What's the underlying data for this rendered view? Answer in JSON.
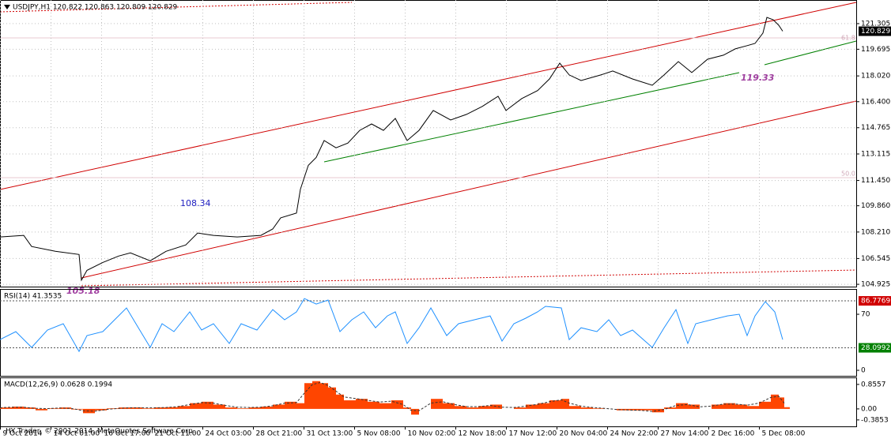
{
  "chart_data": [
    {
      "type": "line",
      "title": "USDJPY,H1 120.822 120.863 120.809 120.829",
      "x": [
        0,
        30,
        40,
        70,
        100,
        103,
        110,
        130,
        150,
        165,
        190,
        210,
        235,
        250,
        270,
        300,
        330,
        345,
        355,
        375,
        380,
        390,
        400,
        410,
        425,
        440,
        455,
        470,
        485,
        500,
        515,
        530,
        548,
        570,
        590,
        610,
        630,
        640,
        660,
        680,
        695,
        708,
        720,
        735,
        760,
        775,
        800,
        825,
        840,
        858,
        875,
        895,
        915,
        930,
        945,
        955,
        965,
        970,
        978,
        985,
        990
      ],
      "values": [
        107.9,
        108.0,
        107.3,
        107.0,
        106.8,
        105.18,
        105.8,
        106.3,
        106.7,
        106.9,
        106.4,
        107.0,
        107.4,
        108.15,
        108.0,
        107.9,
        108.0,
        108.4,
        109.1,
        109.4,
        110.9,
        112.4,
        112.9,
        113.96,
        113.5,
        113.8,
        114.6,
        115.0,
        114.6,
        115.35,
        113.96,
        114.6,
        115.85,
        115.25,
        115.6,
        116.1,
        116.74,
        115.85,
        116.6,
        117.1,
        117.83,
        118.82,
        118.08,
        117.73,
        118.08,
        118.33,
        117.83,
        117.43,
        118.08,
        118.92,
        118.23,
        119.07,
        119.32,
        119.72,
        119.92,
        120.06,
        120.71,
        121.7,
        121.55,
        121.2,
        120.83
      ],
      "color": "#000000",
      "xlim": [
        0,
        1083
      ],
      "xticks": [
        {
          "value": 0,
          "label": "9 Oct 2014"
        },
        {
          "value": 64,
          "label": "14 Oct 01:00"
        },
        {
          "value": 128,
          "label": "16 Oct 17:00"
        },
        {
          "value": 192,
          "label": "21 Oct 11:00"
        },
        {
          "value": 256,
          "label": "24 Oct 03:00"
        },
        {
          "value": 320,
          "label": "28 Oct 21:00"
        },
        {
          "value": 384,
          "label": "31 Oct 13:00"
        },
        {
          "value": 448,
          "label": "5 Nov 08:00"
        },
        {
          "value": 512,
          "label": "10 Nov 02:00"
        },
        {
          "value": 576,
          "label": "12 Nov 18:00"
        },
        {
          "value": 640,
          "label": "17 Nov 12:00"
        },
        {
          "value": 704,
          "label": "20 Nov 04:00"
        },
        {
          "value": 768,
          "label": "24 Nov 22:00"
        },
        {
          "value": 832,
          "label": "27 Nov 14:00"
        },
        {
          "value": 896,
          "label": "2 Dec 16:00"
        },
        {
          "value": 960,
          "label": "5 Dec 08:00"
        }
      ],
      "ylim": [
        104.78,
        122.79
      ],
      "yticks": [
        121.305,
        119.695,
        {
          "value": 118.02,
          "label": "118.020"
        },
        {
          "value": 116.4,
          "label": "116.400"
        },
        114.765,
        113.115,
        {
          "value": 111.45,
          "label": "111.450"
        },
        {
          "value": 109.86,
          "label": "109.860"
        },
        {
          "value": 108.21,
          "label": "108.210"
        },
        106.545,
        104.925
      ],
      "grid": true,
      "last_price": 120.829,
      "annotations": [
        "108.34",
        "105.18",
        "119.33",
        "61.8",
        "50.0"
      ]
    },
    {
      "type": "line",
      "title": "RSI(14) 41.3535",
      "x": [
        0,
        20,
        40,
        60,
        80,
        100,
        110,
        130,
        145,
        160,
        175,
        190,
        205,
        220,
        240,
        255,
        270,
        290,
        305,
        325,
        345,
        360,
        375,
        385,
        400,
        415,
        430,
        445,
        460,
        475,
        490,
        500,
        515,
        530,
        545,
        565,
        580,
        600,
        620,
        635,
        650,
        665,
        680,
        690,
        710,
        720,
        735,
        755,
        770,
        785,
        800,
        825,
        840,
        855,
        870,
        880,
        900,
        920,
        935,
        945,
        955,
        968,
        980,
        990
      ],
      "values": [
        38.4,
        48.3,
        28.6,
        50.3,
        58.2,
        23.6,
        43.4,
        48.3,
        63.1,
        77.9,
        53.2,
        28.6,
        58.2,
        48.3,
        73,
        50.3,
        58.2,
        33.5,
        58.2,
        50.3,
        75.9,
        63.1,
        73,
        89.7,
        82.8,
        87.8,
        48.3,
        63.1,
        73,
        53.2,
        68,
        73,
        33.5,
        53.2,
        77.9,
        43.4,
        58.2,
        63.1,
        68,
        36.5,
        58.2,
        65.1,
        73,
        79.9,
        77.9,
        38.4,
        53.2,
        48.3,
        63.1,
        43.4,
        50.3,
        28.6,
        53.2,
        75.9,
        33.5,
        58.2,
        63.1,
        68,
        70,
        43.4,
        68,
        85.8,
        73,
        38.4
      ],
      "color": "#1e90ff",
      "xlim": [
        0,
        1083
      ],
      "ylim": [
        -6.9,
        101.6
      ],
      "yticks": [
        70,
        0
      ],
      "levels": [
        86.7769,
        28.0992
      ]
    },
    {
      "type": "bar",
      "title": "MACD(12,26,9) 0.0628 0.1994",
      "x": [
        0,
        15,
        30,
        45,
        60,
        75,
        90,
        105,
        120,
        135,
        150,
        165,
        180,
        195,
        210,
        225,
        240,
        255,
        270,
        285,
        300,
        315,
        330,
        345,
        360,
        375,
        385,
        395,
        405,
        415,
        425,
        435,
        450,
        465,
        480,
        495,
        510,
        520,
        530,
        545,
        560,
        575,
        590,
        605,
        620,
        635,
        650,
        665,
        680,
        695,
        710,
        720,
        735,
        750,
        765,
        780,
        795,
        810,
        825,
        840,
        855,
        870,
        885,
        900,
        915,
        930,
        945,
        960,
        975,
        985,
        992
      ],
      "series": [
        {
          "type": "bar",
          "color": "#ff4500",
          "values": [
            0.05,
            0.08,
            0.05,
            -0.05,
            0.02,
            0.05,
            -0.02,
            -0.15,
            -0.05,
            0.02,
            0.05,
            0.05,
            0.02,
            0.05,
            0.06,
            0.1,
            0.2,
            0.25,
            0.15,
            0.05,
            0.02,
            0.05,
            0.08,
            0.15,
            0.25,
            0.2,
            0.9,
            0.97,
            0.9,
            0.75,
            0.5,
            0.3,
            0.35,
            0.25,
            0.2,
            0.3,
            0.05,
            -0.2,
            0.0,
            0.35,
            0.2,
            0.1,
            0.05,
            0.1,
            0.15,
            0.0,
            0.05,
            0.15,
            0.2,
            0.3,
            0.35,
            0.1,
            0.05,
            0.02,
            0.0,
            -0.05,
            -0.05,
            -0.05,
            -0.12,
            0.05,
            0.2,
            0.15,
            0.0,
            0.15,
            0.2,
            0.15,
            0.1,
            0.25,
            0.5,
            0.4,
            0.06
          ]
        },
        {
          "type": "line",
          "color": "#333333",
          "dashed": true,
          "values": [
            0.04,
            0.06,
            0.06,
            0.02,
            0.01,
            0.03,
            0.02,
            -0.06,
            -0.08,
            -0.02,
            0.02,
            0.04,
            0.04,
            0.04,
            0.05,
            0.08,
            0.15,
            0.22,
            0.2,
            0.12,
            0.06,
            0.05,
            0.06,
            0.11,
            0.2,
            0.22,
            0.55,
            0.85,
            0.92,
            0.82,
            0.62,
            0.42,
            0.36,
            0.3,
            0.24,
            0.27,
            0.15,
            -0.05,
            -0.06,
            0.2,
            0.25,
            0.15,
            0.08,
            0.08,
            0.12,
            0.06,
            0.05,
            0.1,
            0.16,
            0.25,
            0.32,
            0.2,
            0.1,
            0.05,
            0.02,
            -0.02,
            -0.04,
            -0.05,
            -0.09,
            -0.02,
            0.12,
            0.15,
            0.07,
            0.1,
            0.17,
            0.17,
            0.13,
            0.2,
            0.4,
            0.44,
            0.2
          ]
        }
      ],
      "xlim": [
        0,
        1083
      ],
      "ylim": [
        -0.61,
        1.1
      ],
      "yticks": [
        0.8557,
        {
          "value": 0,
          "label": "0.00"
        },
        -0.3853
      ]
    }
  ],
  "footer": "HY Trader, © 2001-2014, MetaQuotes Software Corp."
}
